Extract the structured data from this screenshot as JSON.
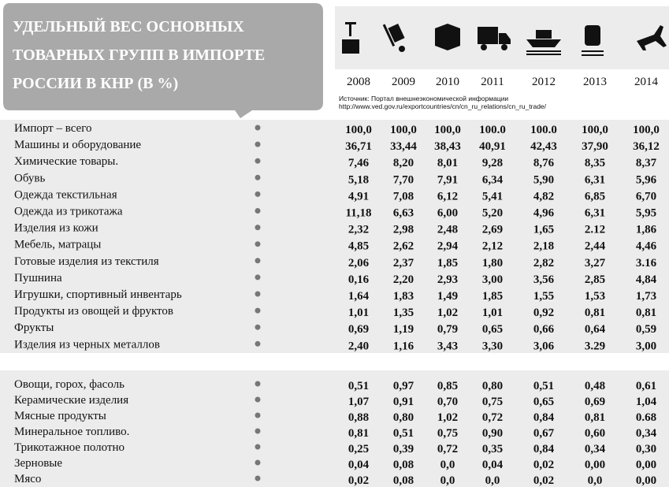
{
  "title": [
    "УДЕЛЬНЫЙ ВЕС ОСНОВНЫХ",
    "ТОВАРНЫХ ГРУПП В ИМПОРТЕ",
    "РОССИИ В КНР (В %)"
  ],
  "years": [
    "2008",
    "2009",
    "2010",
    "2011",
    "2012",
    "2013",
    "2014"
  ],
  "source": [
    "Источник: Портал внешнеэкономической информации",
    "http://www.ved.gov.ru/exportcountries/cn/cn_ru_relations/cn_ru_trade/"
  ],
  "table": [
    {
      "rows": [
        [
          "Импорт – всего",
          "100,0",
          "100,0",
          "100,0",
          "100.0",
          "100.0",
          "100,0",
          "100,0"
        ],
        [
          "Машины и оборудование",
          "36,71",
          "33,44",
          "38,43",
          "40,91",
          "42,43",
          "37,90",
          "36,12"
        ],
        [
          "Химические товары.",
          "7,46",
          "8,20",
          "8,01",
          "9,28",
          "8,76",
          "8,35",
          "8,37"
        ],
        [
          "Обувь",
          "5,18",
          "7,70",
          "7,91",
          "6,34",
          "5,90",
          "6,31",
          "5,96"
        ],
        [
          "Одежда текстильная",
          "4,91",
          "7,08",
          "6,12",
          "5,41",
          "4,82",
          "6,85",
          "6,70"
        ],
        [
          "Одежда из трикотажа",
          "11,18",
          "6,63",
          "6,00",
          "5,20",
          "4,96",
          "6,31",
          "5,95"
        ],
        [
          "Изделия из кожи",
          "2,32",
          "2,98",
          "2,48",
          "2,69",
          "1,65",
          "2.12",
          "1,86"
        ],
        [
          "Мебель, матрацы",
          "4,85",
          "2,62",
          "2,94",
          "2,12",
          "2,18",
          "2,44",
          "4,46"
        ],
        [
          "Готовые изделия из текстиля",
          "2,06",
          "2,37",
          "1,85",
          "1,80",
          "2,82",
          "3,27",
          "3.16"
        ],
        [
          "Пушнина",
          "0,16",
          "2,20",
          "2,93",
          "3,00",
          "3,56",
          "2,85",
          "4,84"
        ],
        [
          "Игрушки, спортивный  инвентарь",
          "1,64",
          "1,83",
          "1,49",
          "1,85",
          "1,55",
          "1,53",
          "1,73"
        ],
        [
          "Продукты из овощей и фруктов",
          "1,01",
          "1,35",
          "1,02",
          "1,01",
          "0,92",
          "0,81",
          "0,81"
        ],
        [
          "Фрукты",
          "0,69",
          "1,19",
          "0,79",
          "0,65",
          "0,66",
          "0,64",
          "0,59"
        ],
        [
          "Изделия из черных  металлов",
          "2,40",
          "1,16",
          "3,43",
          "3,30",
          "3,06",
          "3.29",
          "3,00"
        ]
      ]
    },
    {
      "rows": [
        [
          "Овощи, горох, фасоль",
          "0,51",
          "0,97",
          "0,85",
          "0,80",
          "0,51",
          "0,48",
          "0,61"
        ],
        [
          "Керамические изделия",
          "1,07",
          "0,91",
          "0,70",
          "0,75",
          "0,65",
          "0,69",
          "1,04"
        ],
        [
          "Мясные продукты",
          "0,88",
          "0,80",
          "1,02",
          "0,72",
          "0,84",
          "0,81",
          "0.68"
        ],
        [
          "Минеральное топливо.",
          "0,81",
          "0,51",
          "0,75",
          "0,90",
          "0,67",
          "0,60",
          "0,34"
        ],
        [
          "Трикотажное полотно",
          "0,25",
          "0,39",
          "0,72",
          "0,35",
          "0,84",
          "0,34",
          "0,30"
        ],
        [
          "Зерновые",
          "0,04",
          "0,08",
          "0,0",
          "0,04",
          "0,02",
          "0,00",
          "0,00"
        ],
        [
          "Мясо",
          "0,02",
          "0,08",
          "0,0",
          "0,0",
          "0,02",
          "0,0",
          "0,00"
        ]
      ]
    }
  ]
}
